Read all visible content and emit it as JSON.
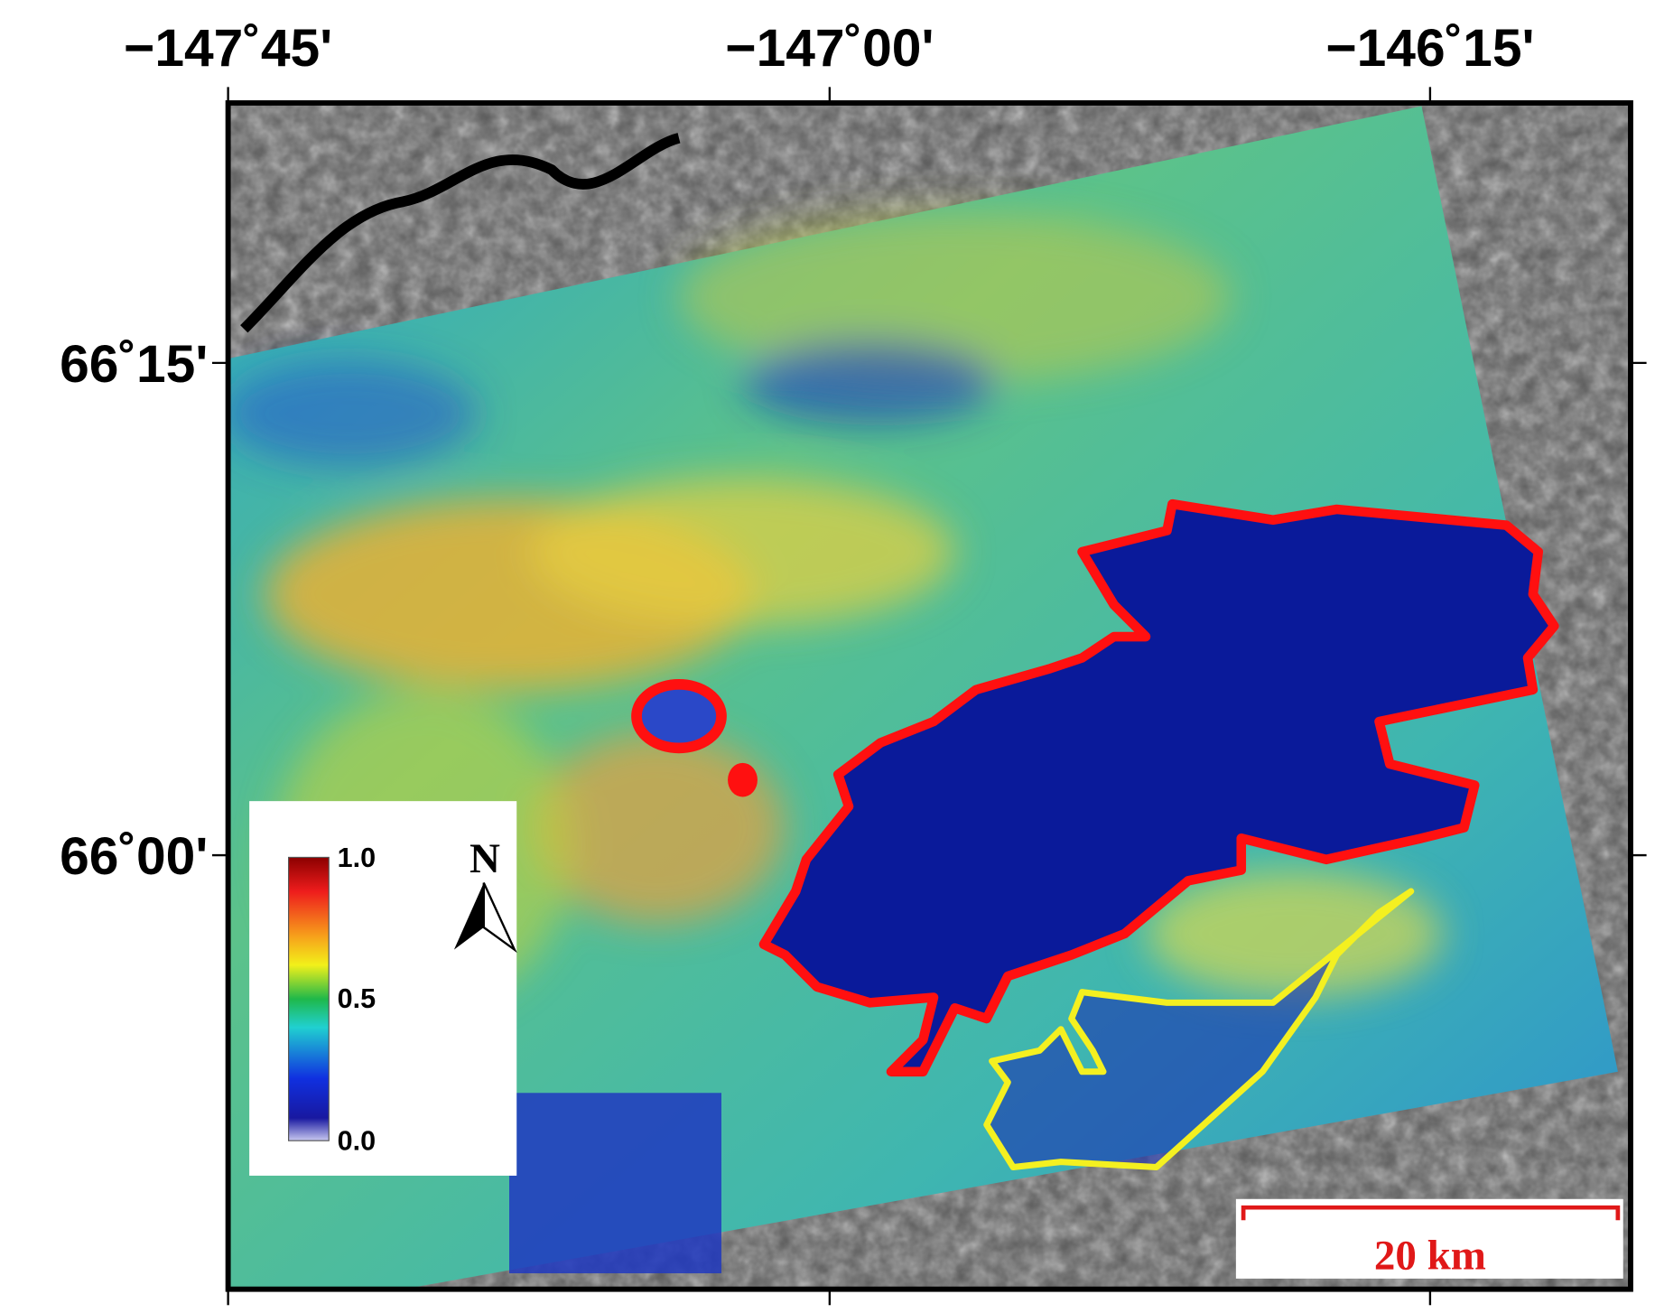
{
  "map": {
    "longitude_ticks": [
      "−147˚45'",
      "−147˚00'",
      "−146˚15'"
    ],
    "latitude_ticks": [
      "66˚15'",
      "66˚00'"
    ],
    "colorbar": {
      "ticks": [
        "1.0",
        "0.5",
        "0.0"
      ]
    },
    "north_label": "N",
    "scale_bar": "20 km"
  }
}
